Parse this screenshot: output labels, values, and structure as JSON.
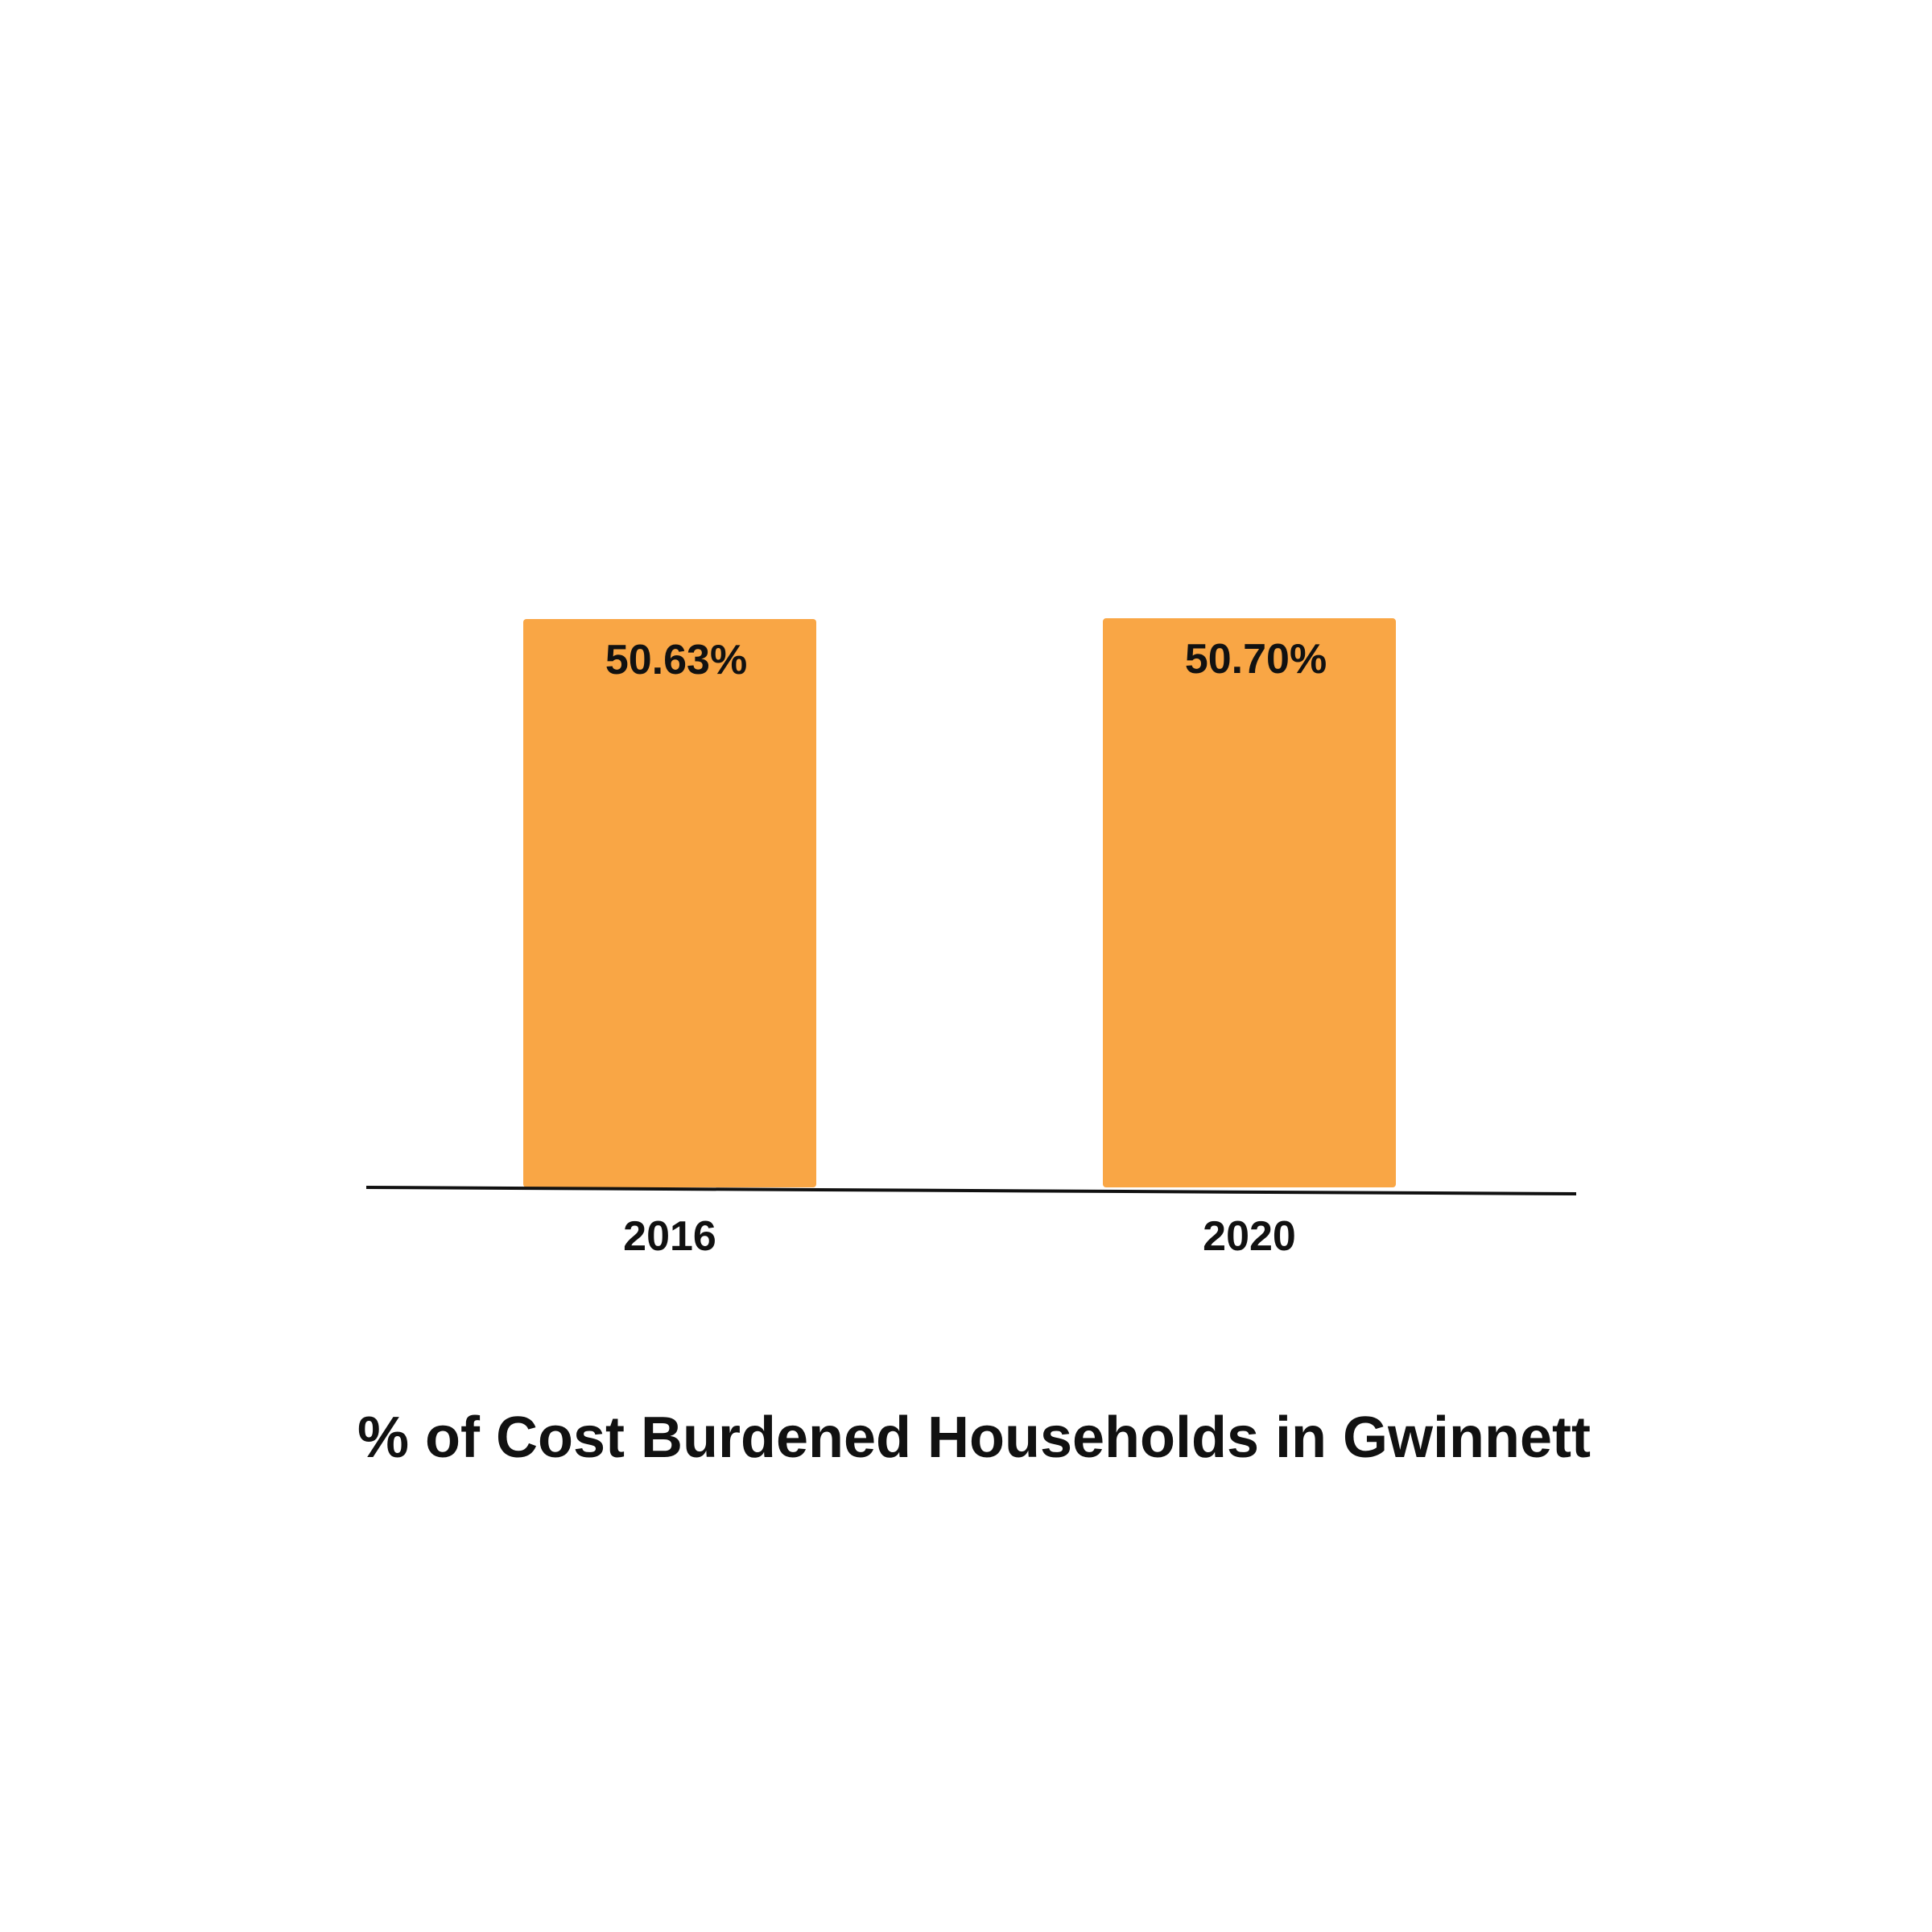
{
  "chart_data": {
    "type": "bar",
    "title": "% of Cost Burdened Households in Gwinnett",
    "categories": [
      "2016",
      "2020"
    ],
    "values": [
      50.63,
      50.7
    ],
    "value_labels": [
      "50.63%",
      "50.70%"
    ],
    "xlabel": "",
    "ylabel": "",
    "ylim": [
      0,
      60
    ],
    "grid": false,
    "legend": "none",
    "bar_color": "#F9A645",
    "axis_color": "#111111",
    "text_color": "#111111"
  }
}
